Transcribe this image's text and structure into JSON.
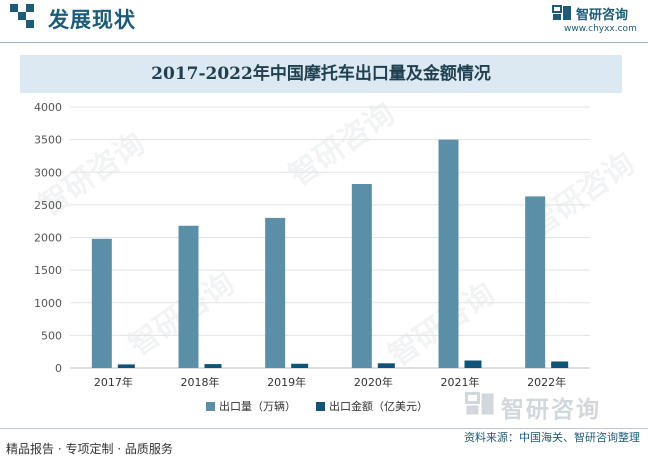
{
  "header": {
    "title": "发展现状",
    "brand_name": "智研咨询",
    "brand_url": "www.chyxx.com"
  },
  "footer": {
    "left_text": "精品报告 · 专项定制 · 品质服务",
    "source": "资料来源：中国海关、智研咨询整理",
    "watermark_brand": "智研咨询",
    "watermark_text": "智研咨询"
  },
  "colors": {
    "accent": "#1d5b78",
    "series1": "#5b8fa8",
    "series2": "#0f5478",
    "title_band": "#dde9f2"
  },
  "chart_data": {
    "type": "bar",
    "title": "2017-2022年中国摩托车出口量及金额情况",
    "categories": [
      "2017年",
      "2018年",
      "2019年",
      "2020年",
      "2021年",
      "2022年"
    ],
    "series": [
      {
        "name": "出口量（万辆）",
        "values": [
          1980,
          2180,
          2300,
          2820,
          3500,
          2630
        ]
      },
      {
        "name": "出口金额（亿美元）",
        "values": [
          55,
          60,
          65,
          72,
          115,
          100
        ]
      }
    ],
    "yticks": [
      "0",
      "500",
      "1000",
      "1500",
      "2000",
      "2500",
      "3000",
      "3500",
      "4000"
    ],
    "ylim": [
      0,
      4000
    ],
    "grid": true,
    "legend_position": "bottom-center"
  }
}
